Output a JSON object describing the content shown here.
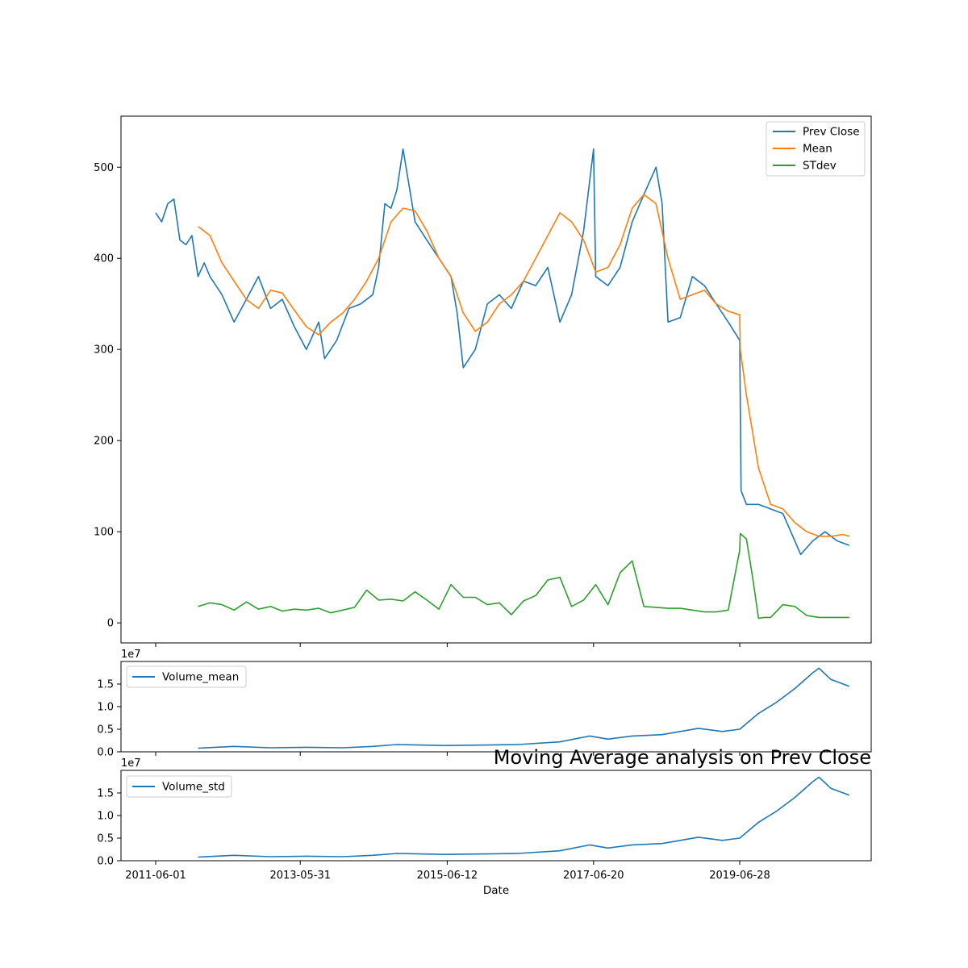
{
  "chart_data": [
    {
      "type": "line",
      "title": "",
      "xlabel": "",
      "ylabel": "",
      "ylim": [
        -22,
        556
      ],
      "yticks": [
        0,
        100,
        200,
        300,
        400,
        500
      ],
      "legend": "top-right",
      "series": [
        {
          "name": "Prev Close",
          "color": "#1f77b4",
          "x": [
            "2011-06-01",
            "2011-07-01",
            "2011-08-01",
            "2011-09-01",
            "2011-10-01",
            "2011-11-01",
            "2011-12-01",
            "2012-01-01",
            "2012-02-01",
            "2012-03-01",
            "2012-05-01",
            "2012-07-01",
            "2012-09-01",
            "2012-11-01",
            "2013-01-01",
            "2013-03-01",
            "2013-05-01",
            "2013-07-01",
            "2013-09-01",
            "2013-10-01",
            "2013-12-01",
            "2014-02-01",
            "2014-04-01",
            "2014-06-01",
            "2014-07-01",
            "2014-08-01",
            "2014-09-01",
            "2014-10-01",
            "2014-11-01",
            "2015-01-01",
            "2015-03-01",
            "2015-05-01",
            "2015-07-01",
            "2015-08-01",
            "2015-09-01",
            "2015-11-01",
            "2016-01-01",
            "2016-03-01",
            "2016-05-01",
            "2016-07-01",
            "2016-09-01",
            "2016-11-01",
            "2017-01-01",
            "2017-03-01",
            "2017-05-01",
            "2017-06-20",
            "2017-07-01",
            "2017-09-01",
            "2017-11-01",
            "2018-01-01",
            "2018-03-01",
            "2018-05-01",
            "2018-06-01",
            "2018-07-01",
            "2018-09-01",
            "2018-11-01",
            "2019-01-01",
            "2019-03-01",
            "2019-05-01",
            "2019-06-28",
            "2019-07-05",
            "2019-08-01",
            "2019-10-01",
            "2019-12-01",
            "2020-02-01",
            "2020-04-01",
            "2020-05-01",
            "2020-07-01",
            "2020-09-01",
            "2020-11-01",
            "2021-01-01"
          ],
          "values": [
            450,
            440,
            460,
            465,
            420,
            415,
            425,
            380,
            395,
            380,
            360,
            330,
            355,
            380,
            345,
            355,
            325,
            300,
            330,
            290,
            310,
            345,
            350,
            360,
            390,
            460,
            455,
            475,
            520,
            440,
            420,
            400,
            380,
            340,
            280,
            300,
            350,
            360,
            345,
            375,
            370,
            390,
            330,
            360,
            430,
            520,
            380,
            370,
            390,
            440,
            470,
            500,
            460,
            330,
            335,
            380,
            370,
            350,
            330,
            310,
            145,
            130,
            130,
            125,
            120,
            90,
            75,
            90,
            100,
            90,
            85
          ]
        },
        {
          "name": "Mean",
          "color": "#ff7f0e",
          "x": [
            "2012-01-01",
            "2012-03-01",
            "2012-05-01",
            "2012-07-01",
            "2012-09-01",
            "2012-11-01",
            "2013-01-01",
            "2013-03-01",
            "2013-05-01",
            "2013-07-01",
            "2013-09-01",
            "2013-11-01",
            "2014-01-01",
            "2014-03-01",
            "2014-05-01",
            "2014-07-01",
            "2014-09-01",
            "2014-11-01",
            "2015-01-01",
            "2015-03-01",
            "2015-05-01",
            "2015-07-01",
            "2015-09-01",
            "2015-11-01",
            "2016-01-01",
            "2016-03-01",
            "2016-05-01",
            "2016-07-01",
            "2016-09-01",
            "2016-11-01",
            "2017-01-01",
            "2017-03-01",
            "2017-05-01",
            "2017-07-01",
            "2017-09-01",
            "2017-11-01",
            "2018-01-01",
            "2018-03-01",
            "2018-05-01",
            "2018-07-01",
            "2018-09-01",
            "2018-11-01",
            "2019-01-01",
            "2019-03-01",
            "2019-05-01",
            "2019-06-28",
            "2019-07-01",
            "2019-08-01",
            "2019-10-01",
            "2019-12-01",
            "2020-02-01",
            "2020-04-01",
            "2020-06-01",
            "2020-08-01",
            "2020-10-01",
            "2020-12-01",
            "2021-01-01"
          ],
          "values": [
            435,
            425,
            395,
            375,
            355,
            345,
            365,
            362,
            343,
            325,
            316,
            330,
            340,
            355,
            375,
            400,
            440,
            455,
            452,
            430,
            400,
            380,
            340,
            320,
            330,
            350,
            360,
            375,
            400,
            425,
            450,
            440,
            420,
            385,
            390,
            415,
            455,
            470,
            460,
            400,
            355,
            360,
            365,
            350,
            342,
            338,
            300,
            250,
            170,
            130,
            125,
            110,
            100,
            95,
            95,
            97,
            95
          ]
        },
        {
          "name": "STdev",
          "color": "#2ca02c",
          "x": [
            "2012-01-01",
            "2012-03-01",
            "2012-05-01",
            "2012-07-01",
            "2012-09-01",
            "2012-11-01",
            "2013-01-01",
            "2013-03-01",
            "2013-05-01",
            "2013-07-01",
            "2013-09-01",
            "2013-11-01",
            "2014-01-01",
            "2014-03-01",
            "2014-05-01",
            "2014-07-01",
            "2014-09-01",
            "2014-11-01",
            "2015-01-01",
            "2015-03-01",
            "2015-05-01",
            "2015-07-01",
            "2015-09-01",
            "2015-11-01",
            "2016-01-01",
            "2016-03-01",
            "2016-05-01",
            "2016-07-01",
            "2016-09-01",
            "2016-11-01",
            "2017-01-01",
            "2017-03-01",
            "2017-05-01",
            "2017-07-01",
            "2017-09-01",
            "2017-11-01",
            "2018-01-01",
            "2018-03-01",
            "2018-05-01",
            "2018-07-01",
            "2018-09-01",
            "2018-11-01",
            "2019-01-01",
            "2019-03-01",
            "2019-05-01",
            "2019-06-28",
            "2019-07-01",
            "2019-08-01",
            "2019-09-01",
            "2019-10-01",
            "2019-11-01",
            "2019-12-01",
            "2020-02-01",
            "2020-04-01",
            "2020-06-01",
            "2020-08-01",
            "2020-10-01",
            "2020-12-01",
            "2021-01-01"
          ],
          "values": [
            18,
            22,
            20,
            14,
            23,
            15,
            18,
            13,
            15,
            14,
            16,
            11,
            14,
            17,
            36,
            25,
            26,
            24,
            34,
            25,
            15,
            42,
            28,
            28,
            20,
            22,
            9,
            24,
            30,
            47,
            50,
            18,
            25,
            42,
            20,
            55,
            68,
            18,
            17,
            16,
            16,
            14,
            12,
            12,
            14,
            80,
            98,
            92,
            50,
            5,
            6,
            6,
            20,
            18,
            8,
            6,
            6,
            6,
            6
          ]
        }
      ]
    },
    {
      "type": "line",
      "title": "",
      "xlabel": "",
      "ylabel": "",
      "y_multiplier_label": "1e7",
      "ylim": [
        0,
        2.0
      ],
      "yticks": [
        "0.0",
        "0.5",
        "1.0",
        "1.5"
      ],
      "legend": "top-left",
      "series": [
        {
          "name": "Volume_mean",
          "color": "#1f77b4",
          "x": [
            "2012-01-01",
            "2012-07-01",
            "2013-01-01",
            "2013-07-01",
            "2014-01-01",
            "2014-06-01",
            "2014-10-01",
            "2015-06-01",
            "2016-01-01",
            "2016-06-01",
            "2017-01-01",
            "2017-06-01",
            "2017-09-01",
            "2018-01-01",
            "2018-06-01",
            "2018-12-01",
            "2019-04-01",
            "2019-06-28",
            "2019-10-01",
            "2020-01-01",
            "2020-04-01",
            "2020-07-01",
            "2020-08-01",
            "2020-10-01",
            "2021-01-01"
          ],
          "values": [
            0.08,
            0.12,
            0.09,
            0.1,
            0.09,
            0.12,
            0.16,
            0.14,
            0.15,
            0.16,
            0.22,
            0.35,
            0.28,
            0.35,
            0.38,
            0.52,
            0.45,
            0.5,
            0.85,
            1.1,
            1.4,
            1.75,
            1.85,
            1.6,
            1.45
          ]
        }
      ]
    },
    {
      "type": "line",
      "title": "Moving Average analysis on Prev Close",
      "xlabel": "Date",
      "ylabel": "",
      "y_multiplier_label": "1e7",
      "ylim": [
        0,
        2.0
      ],
      "yticks": [
        "0.0",
        "0.5",
        "1.0",
        "1.5"
      ],
      "xticks": [
        "2011-06-01",
        "2013-05-31",
        "2015-06-12",
        "2017-06-20",
        "2019-06-28"
      ],
      "legend": "top-left",
      "series": [
        {
          "name": "Volume_std",
          "color": "#1f77b4",
          "x": [
            "2012-01-01",
            "2012-07-01",
            "2013-01-01",
            "2013-07-01",
            "2014-01-01",
            "2014-06-01",
            "2014-10-01",
            "2015-06-01",
            "2016-01-01",
            "2016-06-01",
            "2017-01-01",
            "2017-06-01",
            "2017-09-01",
            "2018-01-01",
            "2018-06-01",
            "2018-12-01",
            "2019-04-01",
            "2019-06-28",
            "2019-10-01",
            "2020-01-01",
            "2020-04-01",
            "2020-07-01",
            "2020-08-01",
            "2020-10-01",
            "2021-01-01"
          ],
          "values": [
            0.08,
            0.12,
            0.09,
            0.1,
            0.09,
            0.12,
            0.16,
            0.14,
            0.15,
            0.16,
            0.22,
            0.35,
            0.28,
            0.35,
            0.38,
            0.52,
            0.45,
            0.5,
            0.85,
            1.1,
            1.4,
            1.75,
            1.85,
            1.6,
            1.45
          ]
        }
      ]
    }
  ]
}
